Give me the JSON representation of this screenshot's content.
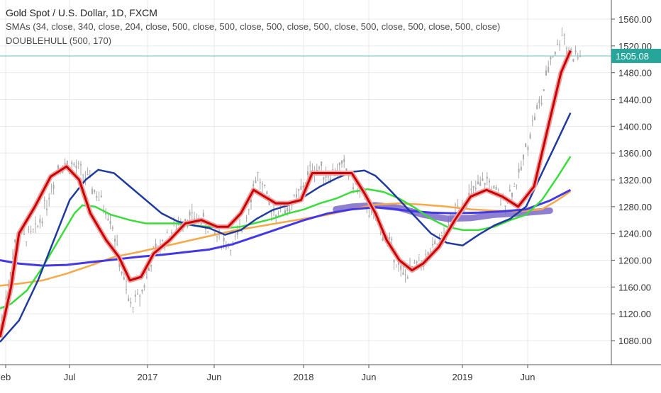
{
  "legend": {
    "title": "Gold Spot / U.S. Dollar, 1D, FXCM",
    "smas": "SMAs (34, close, 340, close, 204, close, 500, close, 500, close, 500, close, 500, close, 500, close, 500, close, 500, close)",
    "doublehull": "DOUBLEHULL (500, 170)"
  },
  "price_tag": {
    "value": "1505.08",
    "color": "#26a69a"
  },
  "colors": {
    "candles": "#a9a9a9",
    "sma_fast": "#cc0000",
    "sma_fast_halo": "#e8a5a5",
    "sma_medium": "#1f3a9e",
    "sma_green": "#3cdc3c",
    "sma_orange": "#f7a84a",
    "sma_purple": "#4338e6",
    "hull_band": "#7b68c8",
    "axis_text": "#333333",
    "grid": "#e9e9e9"
  },
  "chart_data": {
    "type": "line",
    "title": "Gold Spot / U.S. Dollar, 1D, FXCM",
    "xlabel": "",
    "ylabel": "",
    "ylim": [
      1050,
      1570
    ],
    "x_ticks": [
      "eb",
      "Jul",
      "2017",
      "Jun",
      "2018",
      "Jun",
      "2019",
      "Jun"
    ],
    "y_ticks": [
      "1560.00",
      "1520.00",
      "1480.00",
      "1440.00",
      "1400.00",
      "1360.00",
      "1320.00",
      "1280.00",
      "1240.00",
      "1200.00",
      "1160.00",
      "1120.00",
      "1080.00"
    ],
    "y_tick_values": [
      1560,
      1520,
      1480,
      1440,
      1400,
      1360,
      1320,
      1280,
      1240,
      1200,
      1160,
      1120,
      1080
    ],
    "x_range": [
      2016.08,
      2019.75
    ],
    "grid": true,
    "current_price": 1505.08,
    "series": [
      {
        "key": "price",
        "x": [
          2016.08,
          2016.18,
          2016.3,
          2016.38,
          2016.45,
          2016.55,
          2016.62,
          2016.7,
          2016.78,
          2016.85,
          2016.9,
          2016.97,
          2017.05,
          2017.15,
          2017.25,
          2017.35,
          2017.45,
          2017.55,
          2017.62,
          2017.7,
          2017.78,
          2017.85,
          2017.95,
          2018.05,
          2018.15,
          2018.25,
          2018.35,
          2018.45,
          2018.55,
          2018.62,
          2018.7,
          2018.78,
          2018.88,
          2018.97,
          2019.08,
          2019.15,
          2019.25,
          2019.35,
          2019.45,
          2019.5,
          2019.55,
          2019.6,
          2019.63,
          2019.66,
          2019.7
        ],
        "y": [
          1100,
          1230,
          1240,
          1290,
          1345,
          1340,
          1325,
          1295,
          1265,
          1180,
          1130,
          1150,
          1210,
          1240,
          1265,
          1260,
          1235,
          1220,
          1255,
          1330,
          1280,
          1270,
          1290,
          1340,
          1330,
          1340,
          1300,
          1260,
          1220,
          1175,
          1190,
          1205,
          1235,
          1280,
          1305,
          1320,
          1285,
          1320,
          1415,
          1440,
          1500,
          1520,
          1545,
          1515,
          1505
        ]
      },
      {
        "key": "sma_fast",
        "x": [
          2016.08,
          2016.15,
          2016.2,
          2016.3,
          2016.4,
          2016.5,
          2016.58,
          2016.65,
          2016.75,
          2016.83,
          2016.9,
          2016.97,
          2017.05,
          2017.15,
          2017.25,
          2017.35,
          2017.45,
          2017.52,
          2017.6,
          2017.68,
          2017.75,
          2017.82,
          2017.9,
          2017.98,
          2018.05,
          2018.12,
          2018.2,
          2018.3,
          2018.38,
          2018.45,
          2018.52,
          2018.6,
          2018.68,
          2018.75,
          2018.85,
          2018.95,
          2019.05,
          2019.15,
          2019.25,
          2019.35,
          2019.45,
          2019.55,
          2019.62,
          2019.68
        ],
        "y": [
          1085,
          1160,
          1240,
          1280,
          1325,
          1340,
          1320,
          1270,
          1230,
          1205,
          1170,
          1175,
          1210,
          1230,
          1255,
          1260,
          1250,
          1250,
          1270,
          1305,
          1295,
          1285,
          1285,
          1290,
          1330,
          1330,
          1330,
          1330,
          1300,
          1270,
          1230,
          1200,
          1185,
          1195,
          1220,
          1260,
          1295,
          1305,
          1295,
          1280,
          1310,
          1410,
          1480,
          1513
        ]
      },
      {
        "key": "sma_medium",
        "x": [
          2016.08,
          2016.2,
          2016.32,
          2016.42,
          2016.52,
          2016.62,
          2016.7,
          2016.8,
          2016.9,
          2017.0,
          2017.1,
          2017.2,
          2017.3,
          2017.4,
          2017.5,
          2017.6,
          2017.7,
          2017.8,
          2017.9,
          2018.0,
          2018.1,
          2018.2,
          2018.3,
          2018.38,
          2018.45,
          2018.52,
          2018.6,
          2018.7,
          2018.8,
          2018.9,
          2019.0,
          2019.1,
          2019.2,
          2019.3,
          2019.4,
          2019.5,
          2019.6,
          2019.68
        ],
        "y": [
          1078,
          1110,
          1170,
          1230,
          1290,
          1320,
          1335,
          1330,
          1310,
          1290,
          1270,
          1258,
          1252,
          1248,
          1238,
          1245,
          1262,
          1275,
          1282,
          1295,
          1310,
          1322,
          1332,
          1334,
          1326,
          1310,
          1290,
          1265,
          1240,
          1226,
          1222,
          1238,
          1252,
          1262,
          1280,
          1330,
          1380,
          1420
        ]
      },
      {
        "key": "sma_green",
        "x": [
          2016.08,
          2016.15,
          2016.25,
          2016.35,
          2016.45,
          2016.55,
          2016.6,
          2016.68,
          2016.78,
          2016.9,
          2017.0,
          2017.1,
          2017.2,
          2017.3,
          2017.4,
          2017.5,
          2017.6,
          2017.7,
          2017.8,
          2017.9,
          2018.0,
          2018.1,
          2018.2,
          2018.3,
          2018.4,
          2018.5,
          2018.6,
          2018.7,
          2018.8,
          2018.9,
          2019.0,
          2019.1,
          2019.2,
          2019.3,
          2019.4,
          2019.5,
          2019.6,
          2019.68
        ],
        "y": [
          1128,
          1135,
          1155,
          1190,
          1230,
          1270,
          1282,
          1280,
          1268,
          1260,
          1255,
          1255,
          1255,
          1252,
          1250,
          1248,
          1250,
          1256,
          1262,
          1270,
          1276,
          1285,
          1292,
          1302,
          1306,
          1302,
          1292,
          1278,
          1262,
          1250,
          1245,
          1245,
          1250,
          1260,
          1268,
          1290,
          1325,
          1355
        ]
      },
      {
        "key": "sma_orange",
        "x": [
          2016.08,
          2016.2,
          2016.35,
          2016.5,
          2016.65,
          2016.8,
          2016.95,
          2017.1,
          2017.25,
          2017.4,
          2017.55,
          2017.7,
          2017.85,
          2018.0,
          2018.15,
          2018.3,
          2018.45,
          2018.6,
          2018.75,
          2018.9,
          2019.05,
          2019.2,
          2019.35,
          2019.5,
          2019.6,
          2019.68
        ],
        "y": [
          1162,
          1165,
          1170,
          1180,
          1192,
          1205,
          1212,
          1220,
          1228,
          1236,
          1244,
          1250,
          1256,
          1262,
          1268,
          1276,
          1283,
          1285,
          1283,
          1280,
          1276,
          1274,
          1273,
          1276,
          1290,
          1303
        ]
      },
      {
        "key": "sma_purple",
        "x": [
          2016.08,
          2016.2,
          2016.35,
          2016.5,
          2016.65,
          2016.8,
          2016.95,
          2017.1,
          2017.25,
          2017.4,
          2017.55,
          2017.7,
          2017.85,
          2018.0,
          2018.15,
          2018.3,
          2018.45,
          2018.55,
          2018.65,
          2018.8,
          2018.95,
          2019.1,
          2019.25,
          2019.4,
          2019.55,
          2019.68
        ],
        "y": [
          1200,
          1195,
          1192,
          1193,
          1197,
          1201,
          1205,
          1208,
          1212,
          1216,
          1224,
          1236,
          1248,
          1260,
          1270,
          1276,
          1279,
          1277,
          1274,
          1271,
          1270,
          1271,
          1273,
          1276,
          1289,
          1305
        ]
      },
      {
        "key": "hull_band",
        "x": [
          2018.2,
          2018.3,
          2018.45,
          2018.6,
          2018.75,
          2018.9,
          2019.05,
          2019.2,
          2019.35,
          2019.45,
          2019.55
        ],
        "y": [
          1276,
          1280,
          1282,
          1278,
          1268,
          1262,
          1263,
          1268,
          1270,
          1272,
          1274
        ]
      }
    ]
  }
}
